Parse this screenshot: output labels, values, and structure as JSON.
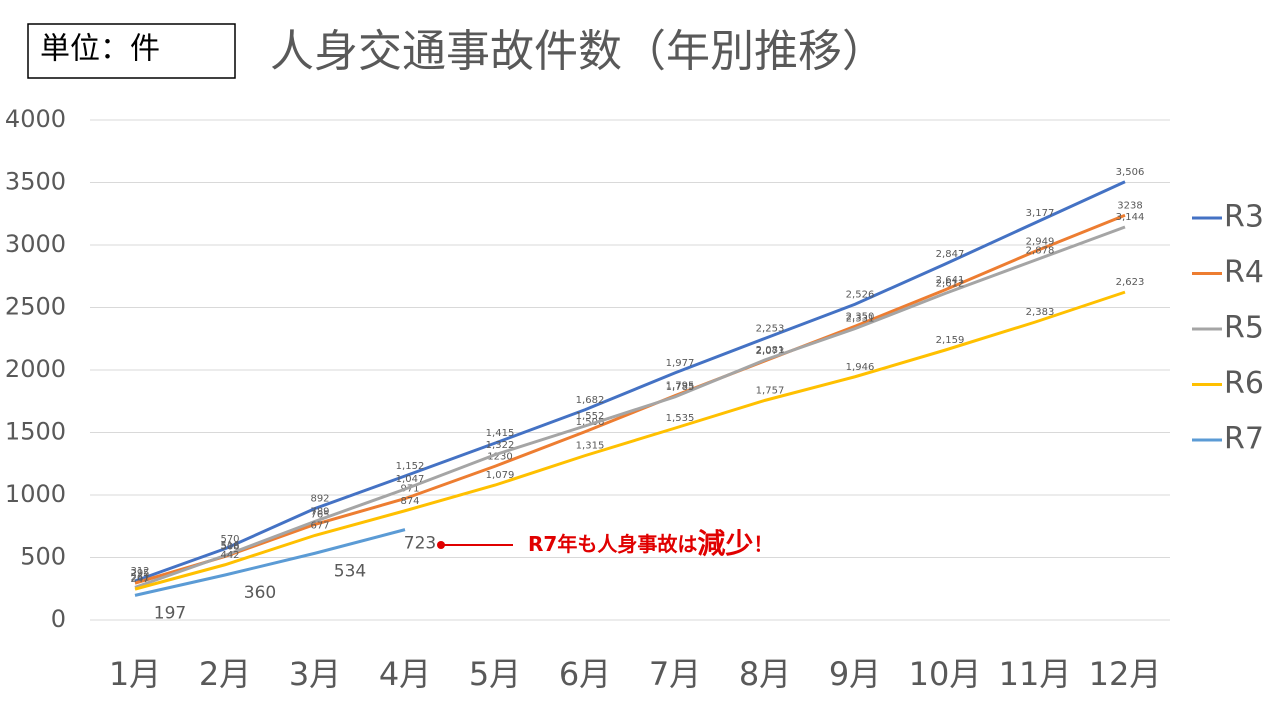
{
  "chart_data": {
    "type": "line",
    "title": "人身交通事故件数（年別推移）",
    "unit_label": "単位：件",
    "categories": [
      "1月",
      "2月",
      "3月",
      "4月",
      "5月",
      "6月",
      "7月",
      "8月",
      "9月",
      "10月",
      "11月",
      "12月"
    ],
    "ylim": [
      0,
      4000
    ],
    "yticks": [
      0,
      500,
      1000,
      1500,
      2000,
      2500,
      3000,
      3500,
      4000
    ],
    "grid": true,
    "legend": "right",
    "series": [
      {
        "name": "R3",
        "color": "#4472c4",
        "values": [
          312,
          570,
          892,
          1152,
          1415,
          1682,
          1977,
          2253,
          2526,
          2847,
          3177,
          3506
        ],
        "value_labels": [
          "312",
          "570",
          "892",
          "1,152",
          "1,415",
          "1,682",
          "1,977",
          "2,253",
          "2,526",
          "2,847",
          "3,177",
          "3,506"
        ]
      },
      {
        "name": "R4",
        "color": "#ed7d31",
        "values": [
          295,
          508,
          765,
          971,
          1230,
          1506,
          1795,
          2073,
          2350,
          2641,
          2949,
          3238
        ],
        "value_labels": [
          "295",
          "508",
          "765",
          "971",
          "1230",
          "1,506",
          "1,795",
          "2,073",
          "2,350",
          "2,641",
          "2,949",
          "3238"
        ]
      },
      {
        "name": "R5",
        "color": "#a5a5a5",
        "values": [
          261,
          516,
          789,
          1047,
          1322,
          1552,
          1785,
          2081,
          2331,
          2612,
          2878,
          3144
        ],
        "value_labels": [
          "261",
          "516",
          "789",
          "1,047",
          "1,322",
          "1,552",
          "1,785",
          "2,081",
          "2,331",
          "2,612",
          "2,878",
          "3,144"
        ]
      },
      {
        "name": "R6",
        "color": "#ffc000",
        "values": [
          247,
          442,
          677,
          874,
          1079,
          1315,
          1535,
          1757,
          1946,
          2159,
          2383,
          2623
        ],
        "value_labels": [
          "247",
          "442",
          "677",
          "874",
          "1,079",
          "1,315",
          "1,535",
          "1,757",
          "1,946",
          "2,159",
          "2,383",
          "2,623"
        ]
      },
      {
        "name": "R7",
        "color": "#5b9bd5",
        "values": [
          197,
          360,
          534,
          723,
          null,
          null,
          null,
          null,
          null,
          null,
          null,
          null
        ]
      }
    ],
    "annotation": {
      "text": "R7年も人身事故は",
      "emphasis": "減少",
      "end": "！",
      "color": "#e00000"
    }
  }
}
